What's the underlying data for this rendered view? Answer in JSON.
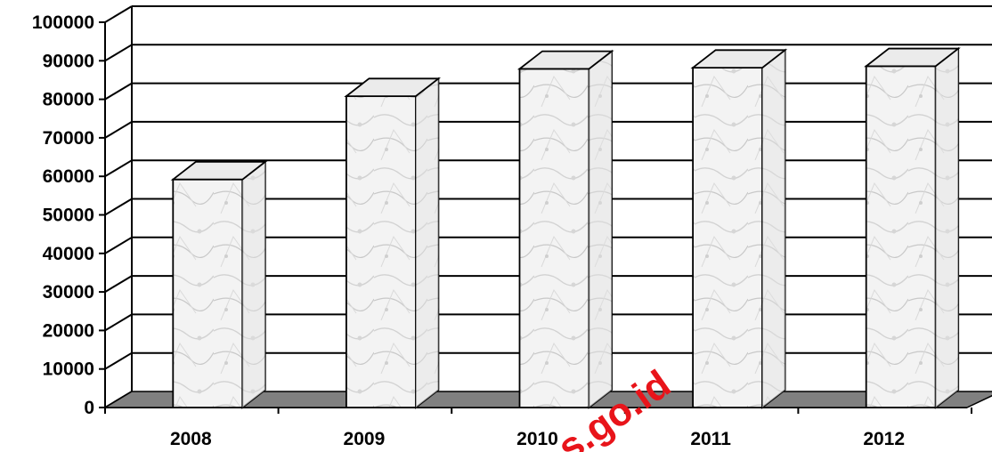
{
  "chart_data": {
    "type": "bar",
    "categories": [
      "2008",
      "2009",
      "2010",
      "2011",
      "2012"
    ],
    "values": [
      59200,
      80800,
      87900,
      88200,
      88600
    ],
    "ylim": [
      0,
      100000
    ],
    "yticks": [
      "0",
      "10000",
      "20000",
      "30000",
      "40000",
      "50000",
      "60000",
      "70000",
      "80000",
      "90000",
      "100000"
    ],
    "grid": true,
    "style": "3d-column",
    "title": "",
    "xlabel": "",
    "ylabel": ""
  },
  "watermark": "s.go.id",
  "colors": {
    "floor": "#808080",
    "bar_face": "#f2f2f2",
    "bar_side": "#e1e1e1",
    "bar_top": "#ebebeb",
    "grid": "#000000",
    "watermark": "#e8141a"
  }
}
